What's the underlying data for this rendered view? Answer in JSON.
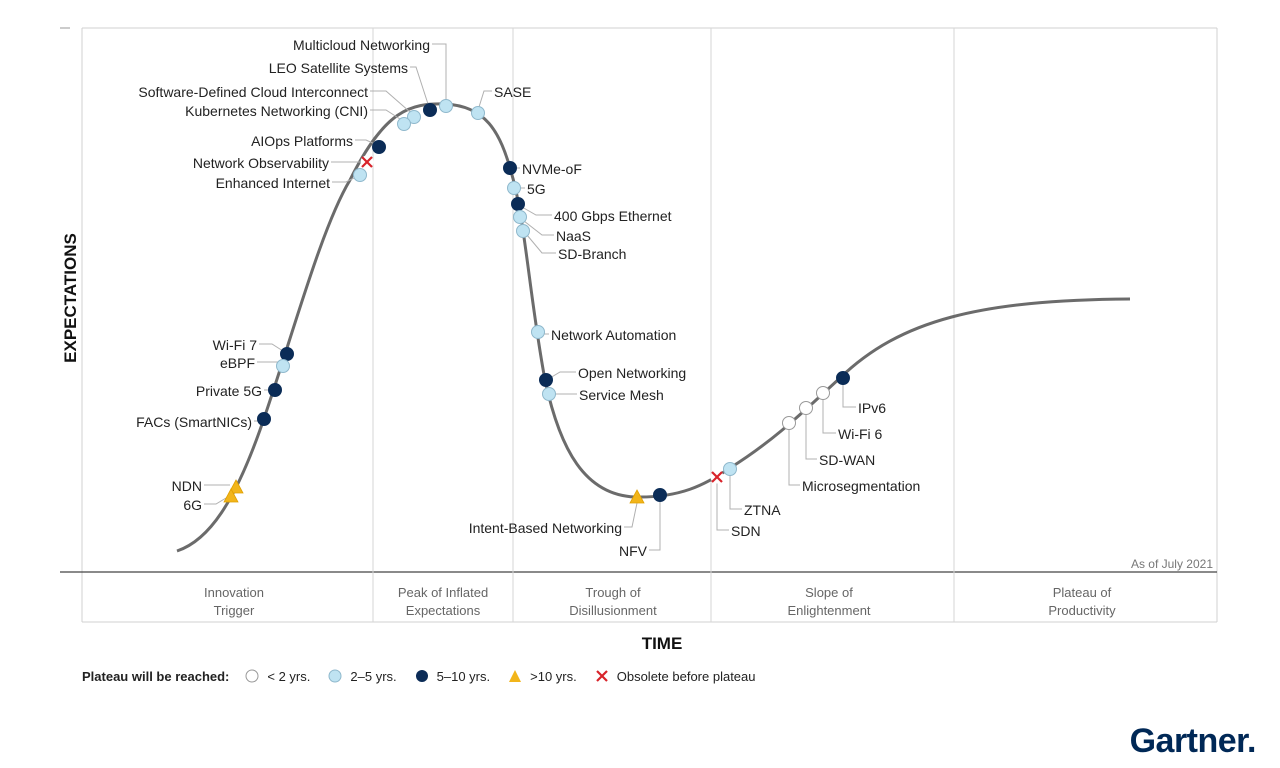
{
  "axes": {
    "y_label": "EXPECTATIONS",
    "x_label": "TIME"
  },
  "as_of": "As of July 2021",
  "phases": [
    {
      "line1": "Innovation",
      "line2": "Trigger"
    },
    {
      "line1": "Peak of Inflated",
      "line2": "Expectations"
    },
    {
      "line1": "Trough of",
      "line2": "Disillusionment"
    },
    {
      "line1": "Slope of",
      "line2": "Enlightenment"
    },
    {
      "line1": "Plateau of",
      "line2": "Productivity"
    }
  ],
  "legend": {
    "title": "Plateau will be reached:",
    "items": [
      {
        "key": "lt2",
        "label": "< 2 yrs."
      },
      {
        "key": "2to5",
        "label": "2–5 yrs."
      },
      {
        "key": "5to10",
        "label": "5–10 yrs."
      },
      {
        "key": "gt10",
        "label": ">10 yrs."
      },
      {
        "key": "obsolete",
        "label": "Obsolete before plateau"
      }
    ]
  },
  "categories": {
    "lt2": {
      "color": "#ffffff",
      "stroke": "#999999",
      "shape": "circle"
    },
    "2to5": {
      "color": "#bfe3f2",
      "stroke": "#8fb8cc",
      "shape": "circle"
    },
    "5to10": {
      "color": "#0b2c57",
      "stroke": "#0b2c57",
      "shape": "circle"
    },
    "gt10": {
      "color": "#f2b51a",
      "stroke": "#e0a000",
      "shape": "triangle"
    },
    "obsolete": {
      "color": "#d8232a",
      "stroke": "#d8232a",
      "shape": "x"
    }
  },
  "technologies": [
    {
      "name": "Multicloud Networking",
      "cat": "2to5"
    },
    {
      "name": "LEO Satellite Systems",
      "cat": "5to10"
    },
    {
      "name": "Software-Defined Cloud Interconnect",
      "cat": "2to5"
    },
    {
      "name": "Kubernetes Networking (CNI)",
      "cat": "2to5"
    },
    {
      "name": "AIOps Platforms",
      "cat": "5to10"
    },
    {
      "name": "Network Observability",
      "cat": "obsolete"
    },
    {
      "name": "Enhanced Internet",
      "cat": "2to5"
    },
    {
      "name": "SASE",
      "cat": "2to5"
    },
    {
      "name": "NVMe-oF",
      "cat": "5to10"
    },
    {
      "name": "5G",
      "cat": "2to5"
    },
    {
      "name": "400 Gbps Ethernet",
      "cat": "5to10"
    },
    {
      "name": "NaaS",
      "cat": "2to5"
    },
    {
      "name": "SD-Branch",
      "cat": "2to5"
    },
    {
      "name": "Wi-Fi 7",
      "cat": "5to10"
    },
    {
      "name": "eBPF",
      "cat": "2to5"
    },
    {
      "name": "Private 5G",
      "cat": "5to10"
    },
    {
      "name": "FACs (SmartNICs)",
      "cat": "5to10"
    },
    {
      "name": "NDN",
      "cat": "gt10"
    },
    {
      "name": "6G",
      "cat": "gt10"
    },
    {
      "name": "Network Automation",
      "cat": "2to5"
    },
    {
      "name": "Open Networking",
      "cat": "5to10"
    },
    {
      "name": "Service Mesh",
      "cat": "2to5"
    },
    {
      "name": "Intent-Based Networking",
      "cat": "gt10"
    },
    {
      "name": "NFV",
      "cat": "5to10"
    },
    {
      "name": "SDN",
      "cat": "obsolete"
    },
    {
      "name": "ZTNA",
      "cat": "2to5"
    },
    {
      "name": "Microsegmentation",
      "cat": "lt2"
    },
    {
      "name": "SD-WAN",
      "cat": "lt2"
    },
    {
      "name": "Wi-Fi 6",
      "cat": "lt2"
    },
    {
      "name": "IPv6",
      "cat": "5to10"
    }
  ],
  "brand": {
    "name": "Gartner",
    "suffix": "."
  }
}
